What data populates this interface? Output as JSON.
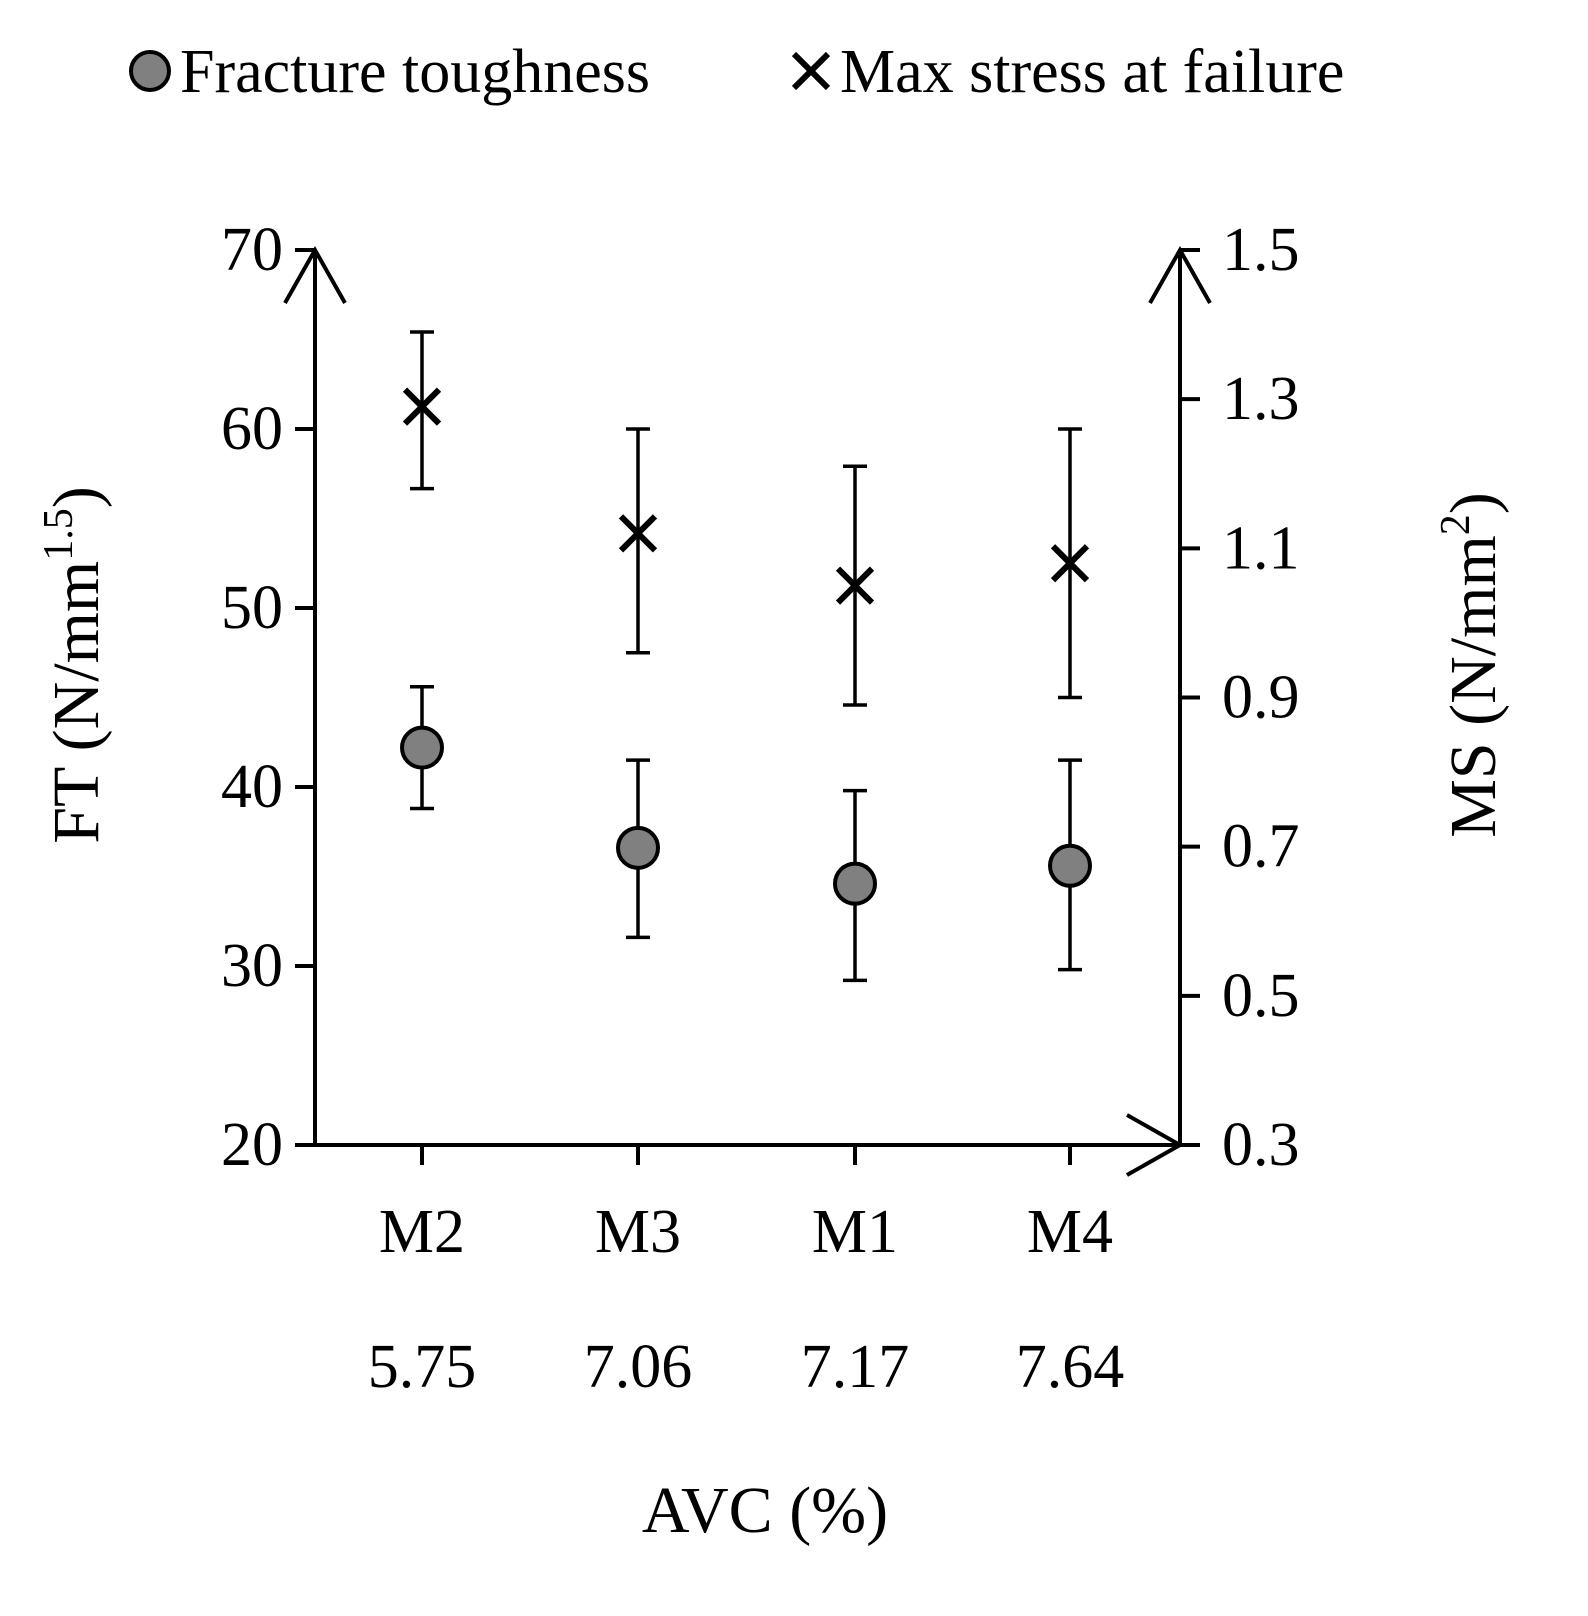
{
  "chart_data": {
    "type": "scatter",
    "categories": [
      "M2",
      "M3",
      "M1",
      "M4"
    ],
    "category_values": [
      "5.75",
      "7.06",
      "7.17",
      "7.64"
    ],
    "xlabel": "AVC (%)",
    "ylabel_left": {
      "main": "FT (N/mm",
      "sup": "1.5",
      "close": ")"
    },
    "ylabel_right": {
      "main": "MS  (N/mm",
      "sup": "2",
      "close": ")"
    },
    "y_left": {
      "min": 20,
      "max": 70,
      "ticks": [
        20,
        30,
        40,
        50,
        60,
        70
      ],
      "tick_labels": [
        "20",
        "30",
        "40",
        "50",
        "60",
        "70"
      ]
    },
    "y_right": {
      "min": 0.3,
      "max": 1.5,
      "ticks": [
        0.3,
        0.5,
        0.7,
        0.9,
        1.1,
        1.3,
        1.5
      ],
      "tick_labels": [
        "0.3",
        "0.5",
        "0.7",
        "0.9",
        "1.1",
        "1.3",
        "1.5"
      ]
    },
    "legend_position": "top",
    "series": [
      {
        "name": "Fracture toughness",
        "axis": "left",
        "marker": "circle",
        "color": "#808080",
        "values": [
          42.2,
          36.6,
          34.6,
          35.6
        ],
        "err_low": [
          38.8,
          31.6,
          29.2,
          29.8
        ],
        "err_high": [
          45.6,
          41.5,
          39.8,
          41.5
        ]
      },
      {
        "name": "Max stress at failure",
        "axis": "right",
        "marker": "cross",
        "color": "#000000",
        "values": [
          1.29,
          1.12,
          1.05,
          1.08
        ],
        "err_low": [
          1.18,
          0.96,
          0.89,
          0.9
        ],
        "err_high": [
          1.39,
          1.26,
          1.21,
          1.26
        ]
      }
    ]
  }
}
